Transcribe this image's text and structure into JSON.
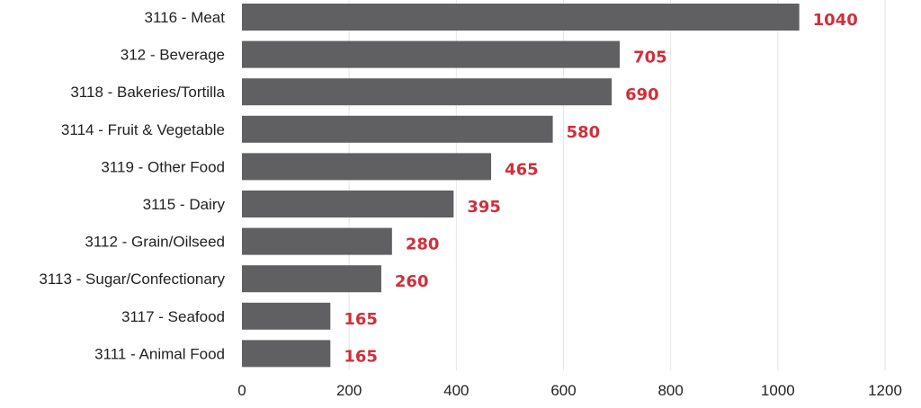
{
  "chart_data": {
    "type": "bar",
    "orientation": "horizontal",
    "categories": [
      "3116 - Meat",
      "312 - Beverage",
      "3118 - Bakeries/Tortilla",
      "3114 - Fruit & Vegetable",
      "3119 - Other Food",
      "3115 - Dairy",
      "3112 - Grain/Oilseed",
      "3113 - Sugar/Confectionary",
      "3117 - Seafood",
      "3111 - Animal Food"
    ],
    "values": [
      1040,
      705,
      690,
      580,
      465,
      395,
      280,
      260,
      165,
      165
    ],
    "value_labels": [
      "1040",
      "705",
      "690",
      "580",
      "465",
      "395",
      "280",
      "260",
      "165",
      "165"
    ],
    "x_ticks": [
      "0",
      "200",
      "400",
      "600",
      "800",
      "1000",
      "1200"
    ],
    "xlim": [
      0,
      1200
    ],
    "grid": "vertical",
    "legend": "none",
    "colors": {
      "bar": "#606062",
      "value_label": "#d12f3a"
    }
  }
}
